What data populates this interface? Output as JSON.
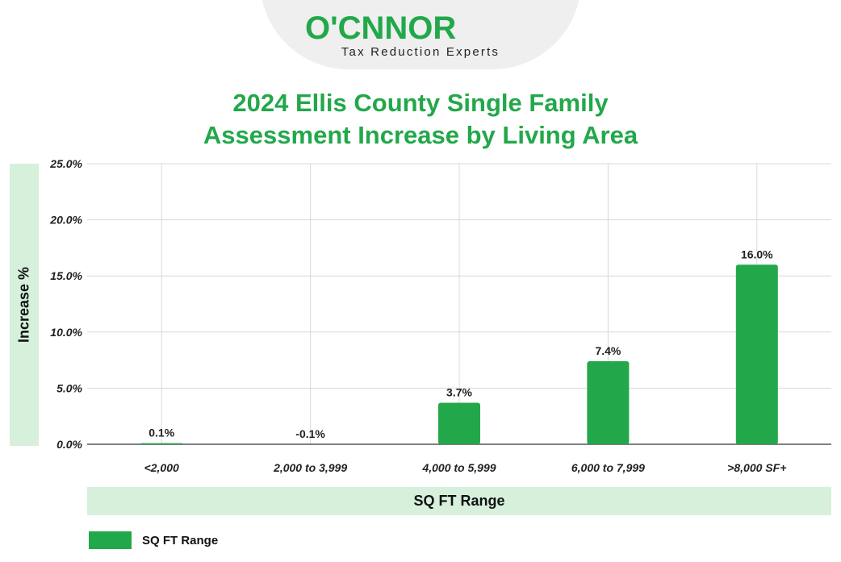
{
  "logo": {
    "name_prefix": "O'",
    "name_c": "C",
    "name_rest": "NNOR",
    "tagline": "Tax Reduction Experts",
    "brand_color": "#22a84a"
  },
  "colors": {
    "bar": "#22a84a",
    "band": "#d6f0dc",
    "grid": "#d9d9d9",
    "title": "#22a84a"
  },
  "chart_data": {
    "type": "bar",
    "title_line1": "2024 Ellis County Single Family",
    "title_line2": "Assessment Increase by Living Area",
    "xlabel": "SQ FT Range",
    "ylabel": "Increase %",
    "categories": [
      "<2,000",
      "2,000 to 3,999",
      "4,000 to 5,999",
      "6,000 to 7,999",
      ">8,000 SF+"
    ],
    "values": [
      0.1,
      -0.1,
      3.7,
      7.4,
      16.0
    ],
    "value_labels": [
      "0.1%",
      "-0.1%",
      "3.7%",
      "7.4%",
      "16.0%"
    ],
    "ylim": [
      0,
      25
    ],
    "yticks": [
      0,
      5,
      10,
      15,
      20,
      25
    ],
    "ytick_labels": [
      "0.0%",
      "5.0%",
      "10.0%",
      "15.0%",
      "20.0%",
      "25.0%"
    ],
    "legend": "SQ FT Range",
    "grid": true
  }
}
